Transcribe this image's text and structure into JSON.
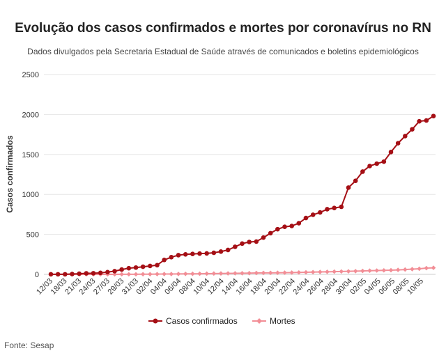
{
  "chart_data": {
    "type": "line",
    "title": "Evolução dos casos confirmados e mortes por coronavírus no RN",
    "subtitle": "Dados divulgados pela Secretaria Estadual de Saúde através de comunicados e boletins epidemiológicos",
    "ylabel": "Casos confirmados",
    "xlabel": "",
    "ylim": [
      0,
      2500
    ],
    "yticks": [
      0,
      500,
      1000,
      1500,
      2000,
      2500
    ],
    "x_tick_labels": [
      "12/03",
      "18/03",
      "21/03",
      "24/03",
      "27/03",
      "29/03",
      "31/03",
      "02/04",
      "04/04",
      "06/04",
      "08/04",
      "10/04",
      "12/04",
      "14/04",
      "16/04",
      "18/04",
      "20/04",
      "22/04",
      "24/04",
      "26/04",
      "28/04",
      "30/04",
      "02/05",
      "04/05",
      "06/05",
      "08/05",
      "10/05"
    ],
    "grid": true,
    "legend": "bottom",
    "series": [
      {
        "name": "Casos confirmados",
        "color": "#a50f15",
        "values": [
          1,
          1,
          1,
          4,
          8,
          13,
          14,
          19,
          28,
          40,
          60,
          77,
          85,
          95,
          105,
          115,
          180,
          215,
          240,
          250,
          255,
          260,
          262,
          270,
          285,
          305,
          345,
          385,
          405,
          410,
          460,
          515,
          565,
          595,
          605,
          640,
          705,
          745,
          775,
          815,
          830,
          845,
          1085,
          1170,
          1285,
          1355,
          1385,
          1410,
          1530,
          1640,
          1730,
          1815,
          1915,
          1925,
          1980
        ]
      },
      {
        "name": "Mortes",
        "color": "#f28e96",
        "values": [
          0,
          0,
          0,
          0,
          0,
          0,
          0,
          0,
          0,
          0,
          1,
          1,
          1,
          2,
          2,
          3,
          4,
          4,
          5,
          6,
          7,
          8,
          9,
          10,
          11,
          12,
          13,
          14,
          15,
          17,
          18,
          19,
          20,
          21,
          22,
          24,
          26,
          28,
          30,
          32,
          34,
          36,
          38,
          40,
          43,
          46,
          48,
          50,
          52,
          56,
          60,
          65,
          70,
          78,
          82
        ]
      }
    ]
  },
  "source": "Fonte: Sesap"
}
